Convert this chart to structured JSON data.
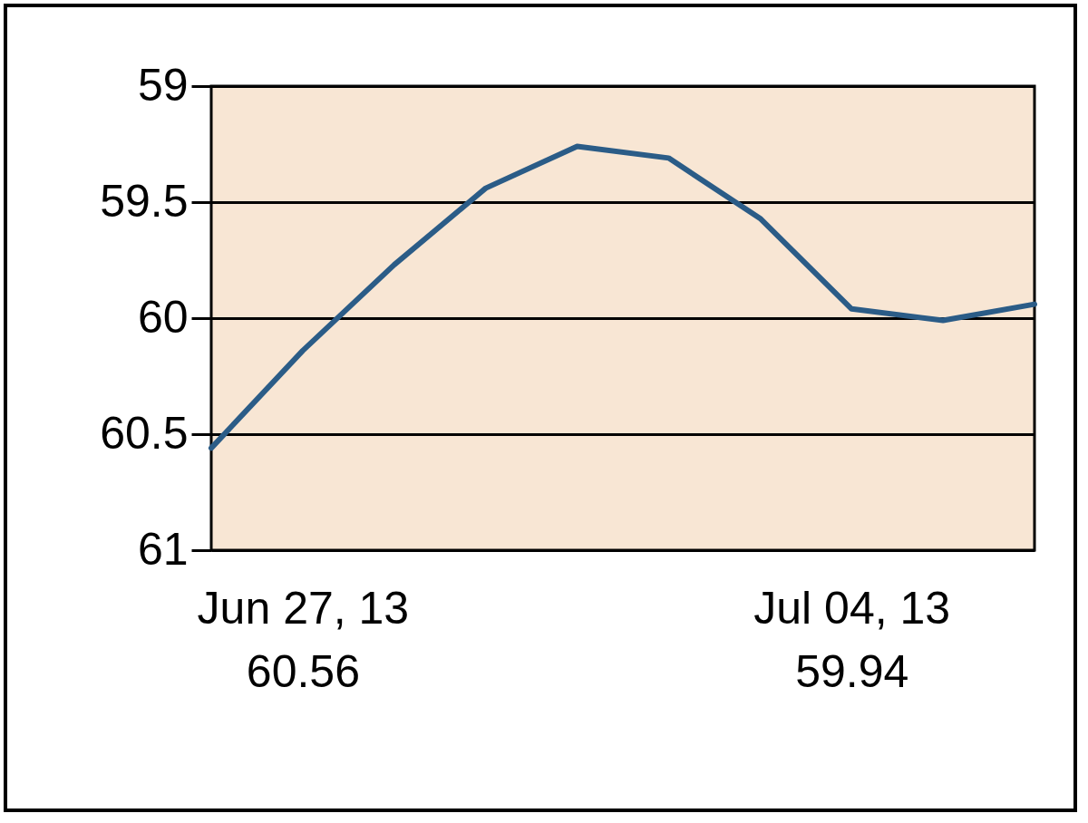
{
  "chart_data": {
    "type": "line",
    "categories": [
      null,
      "Jun 27, 13",
      null,
      null,
      null,
      null,
      null,
      "Jul 04, 13",
      null,
      null
    ],
    "series": [
      {
        "color": "#2b5c87",
        "values": [
          60.56,
          60.14,
          59.77,
          59.44,
          59.26,
          59.31,
          59.57,
          59.96,
          60.01,
          59.94
        ]
      }
    ],
    "annotations": [
      "60.56",
      "59.94"
    ],
    "ylim": [
      61,
      59
    ],
    "yticks": [
      59,
      59.5,
      60,
      60.5,
      61
    ],
    "grid": "y",
    "marker": "none",
    "line_style": "solid"
  }
}
